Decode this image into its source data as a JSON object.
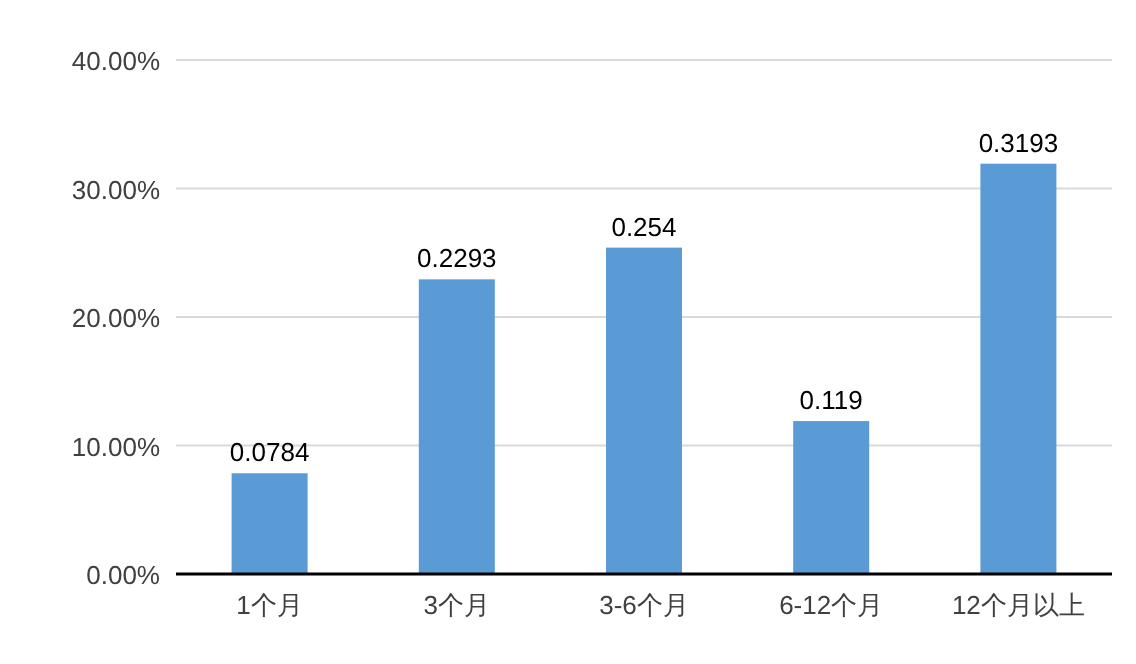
{
  "chart_data": {
    "type": "bar",
    "categories": [
      "1个月",
      "3个月",
      "3-6个月",
      "6-12个月",
      "12个月以上"
    ],
    "values": [
      0.0784,
      0.2293,
      0.254,
      0.119,
      0.3193
    ],
    "color": "#5b9bd5",
    "ylim": [
      0,
      0.4
    ],
    "yticks": [
      {
        "value": 0,
        "label": "0.00%"
      },
      {
        "value": 0.1,
        "label": "10.00%"
      },
      {
        "value": 0.2,
        "label": "20.00%"
      },
      {
        "value": 0.3,
        "label": "30.00%"
      },
      {
        "value": 0.4,
        "label": "40.00%"
      }
    ],
    "grid": "y",
    "data_labels": true
  }
}
